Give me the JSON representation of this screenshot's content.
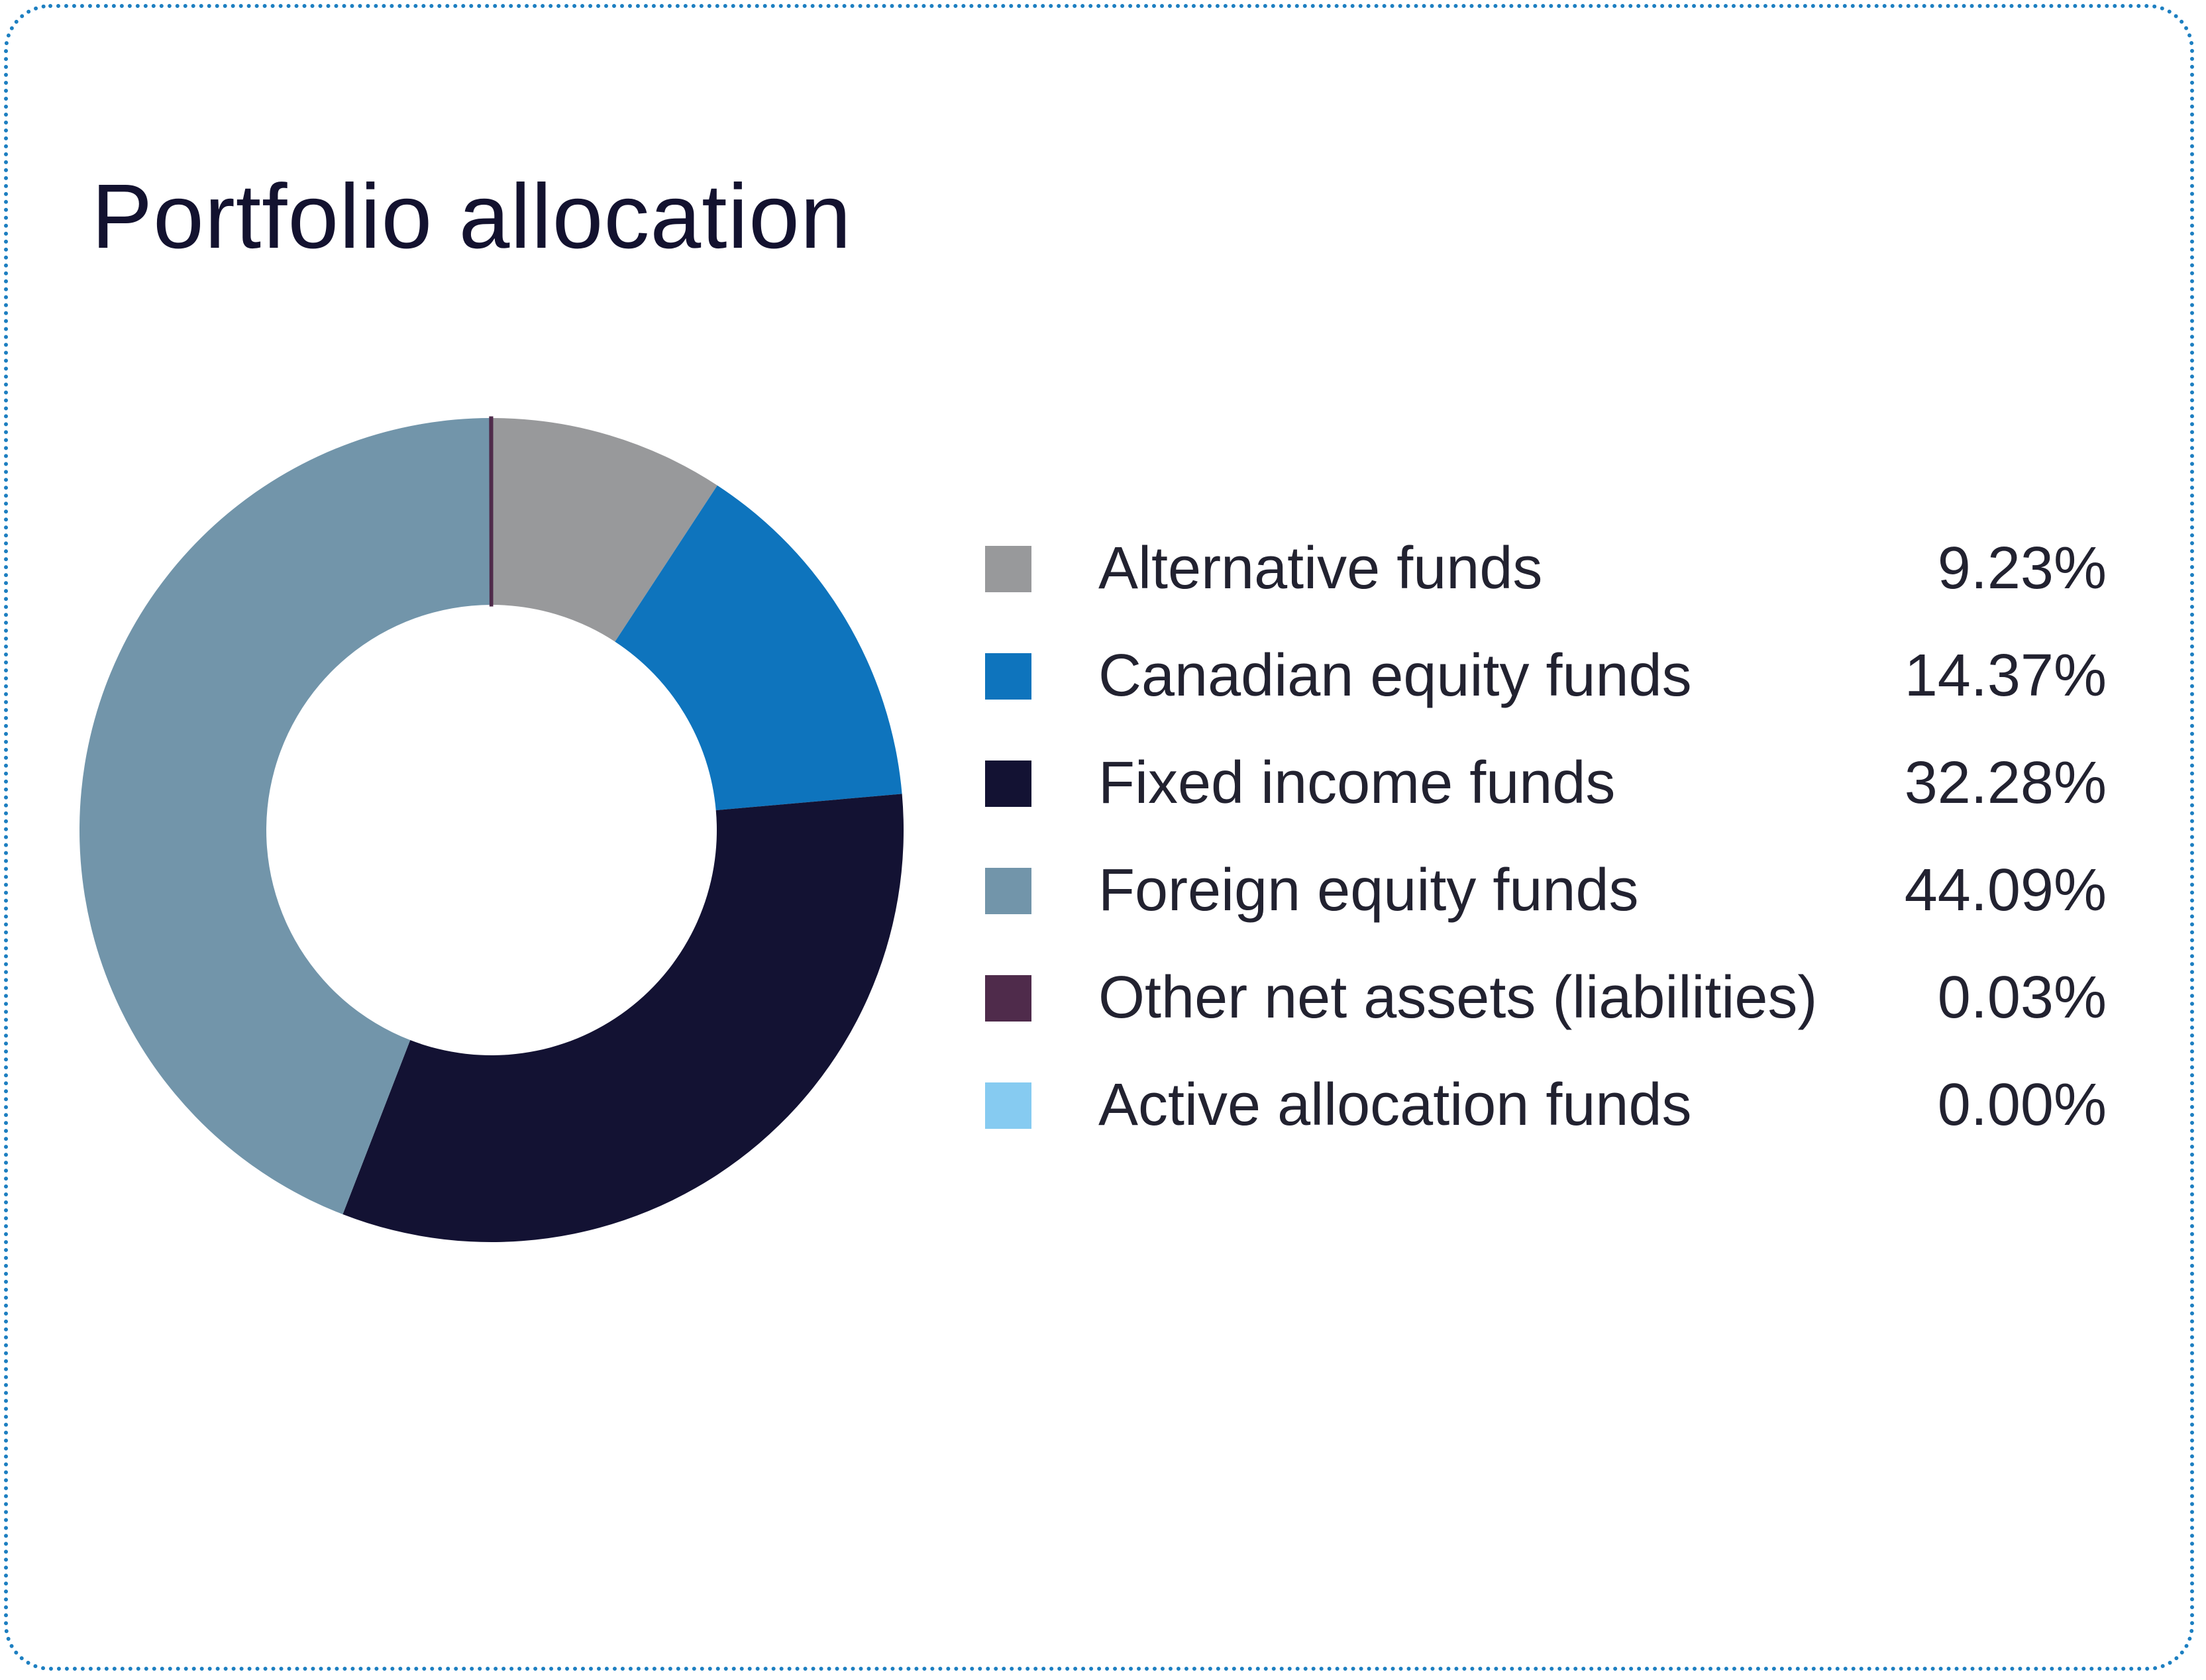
{
  "chart_data": {
    "type": "pie",
    "title": "Portfolio allocation",
    "donut": true,
    "slices": [
      {
        "label": "Alternative funds",
        "value": 9.23,
        "display": "9.23%",
        "color": "#98999b"
      },
      {
        "label": "Canadian equity funds",
        "value": 14.37,
        "display": "14.37%",
        "color": "#0e74bd"
      },
      {
        "label": "Fixed income funds",
        "value": 32.28,
        "display": "32.28%",
        "color": "#131233"
      },
      {
        "label": "Foreign equity funds",
        "value": 44.09,
        "display": "44.09%",
        "color": "#7295aa"
      },
      {
        "label": "Other net assets (liabilities)",
        "value": 0.03,
        "display": "0.03%",
        "color": "#4f2b4b"
      },
      {
        "label": "Active allocation funds",
        "value": 0.0,
        "display": "0.00%",
        "color": "#86cbf1"
      }
    ],
    "legend_position": "right"
  },
  "colors": {
    "border": "#1d7fc1",
    "title": "#13122f",
    "text": "#222230"
  }
}
